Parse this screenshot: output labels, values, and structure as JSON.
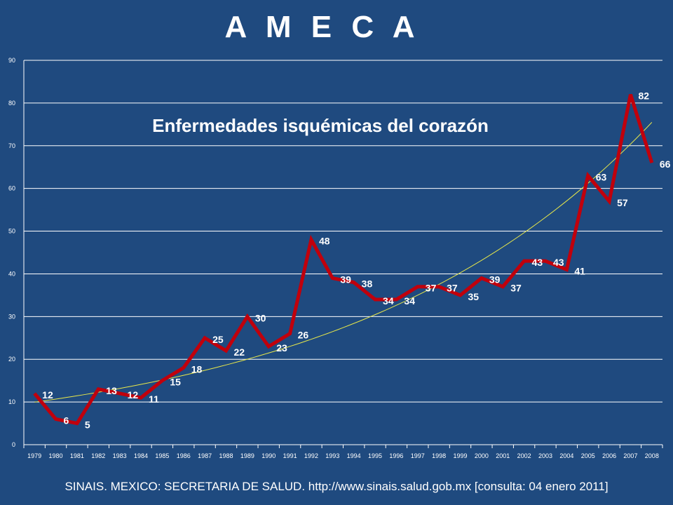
{
  "slide": {
    "title": "A M E C A",
    "source": "SINAIS. MEXICO: SECRETARIA  DE SALUD. http://www.sinais.salud.gob.mx  [consulta: 04 enero 2011]"
  },
  "chart_data": {
    "type": "line",
    "title": "Enfermedades isquémicas del corazón",
    "xlabel": "",
    "ylabel": "",
    "categories": [
      "1979",
      "1980",
      "1981",
      "1982",
      "1983",
      "1984",
      "1985",
      "1986",
      "1987",
      "1988",
      "1989",
      "1990",
      "1991",
      "1992",
      "1993",
      "1994",
      "1995",
      "1996",
      "1997",
      "1998",
      "1999",
      "2000",
      "2001",
      "2002",
      "2003",
      "2004",
      "2005",
      "2006",
      "2007",
      "2008"
    ],
    "series": [
      {
        "values": [
          12,
          6,
          5,
          13,
          12,
          11,
          15,
          18,
          25,
          22,
          30,
          23,
          26,
          48,
          39,
          38,
          34,
          34,
          37,
          37,
          35,
          39,
          37,
          43,
          43,
          41,
          63,
          57,
          82,
          66
        ],
        "color": "#c0000c"
      }
    ],
    "trendline": {
      "type": "exponential",
      "color": "#e8e84a"
    },
    "ylim": [
      0,
      90
    ],
    "yticks": [
      0,
      10,
      20,
      30,
      40,
      50,
      60,
      70,
      80,
      90
    ],
    "grid": true,
    "legend": "none"
  }
}
